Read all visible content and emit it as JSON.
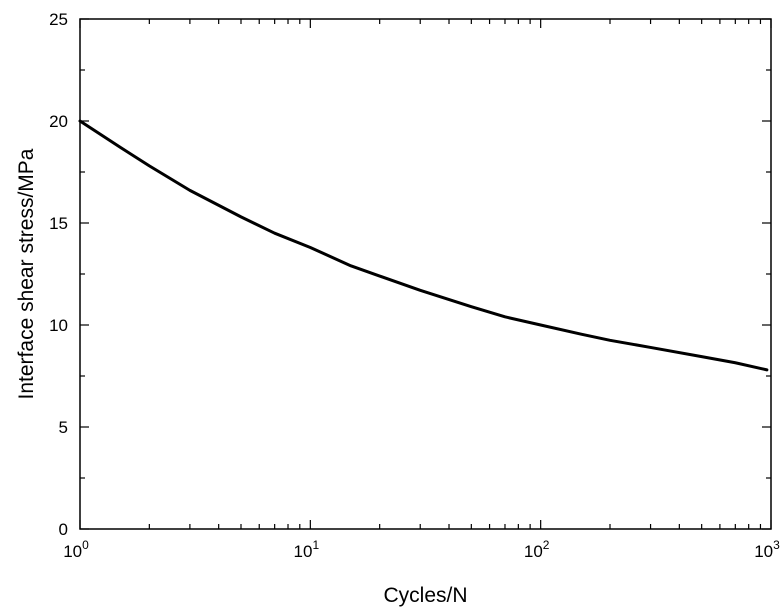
{
  "chart_data": {
    "type": "line",
    "xlabel": "Cycles/N",
    "ylabel": "Interface shear stress/MPa",
    "x_scale": "log",
    "xlim": [
      1,
      1000
    ],
    "ylim": [
      0,
      25
    ],
    "x_ticks": [
      {
        "base": "10",
        "exp": "0",
        "value": 1
      },
      {
        "base": "10",
        "exp": "1",
        "value": 10
      },
      {
        "base": "10",
        "exp": "2",
        "value": 100
      },
      {
        "base": "10",
        "exp": "3",
        "value": 1000
      }
    ],
    "y_ticks": [
      "0",
      "5",
      "10",
      "15",
      "20",
      "25"
    ],
    "grid": false,
    "legend": "none",
    "series": [
      {
        "color": "#000000",
        "x": [
          1,
          1.5,
          2,
          3,
          5,
          7,
          10,
          15,
          20,
          30,
          50,
          70,
          100,
          150,
          200,
          300,
          500,
          700,
          960
        ],
        "y": [
          20.0,
          18.7,
          17.8,
          16.6,
          15.3,
          14.5,
          13.8,
          12.9,
          12.4,
          11.7,
          10.9,
          10.4,
          10.0,
          9.55,
          9.25,
          8.9,
          8.45,
          8.15,
          7.8
        ]
      }
    ]
  }
}
